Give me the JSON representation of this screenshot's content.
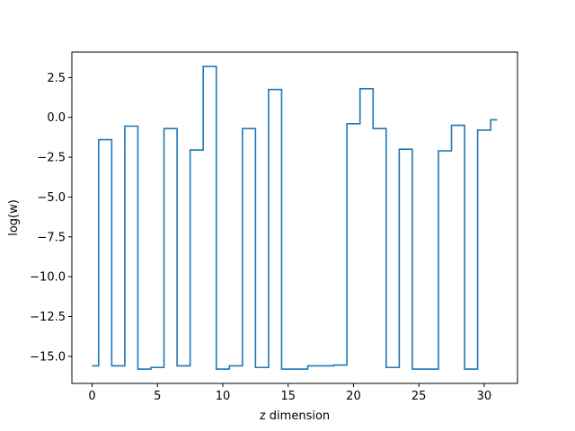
{
  "chart_data": {
    "type": "line",
    "drawstyle": "steps-mid",
    "xlabel": "z dimension",
    "ylabel": "log(w)",
    "xlim": [
      -1.55,
      32.55
    ],
    "ylim": [
      -16.7,
      4.1
    ],
    "xticks": [
      0,
      5,
      10,
      15,
      20,
      25,
      30
    ],
    "xtick_labels": [
      "0",
      "5",
      "10",
      "15",
      "20",
      "25",
      "30"
    ],
    "yticks": [
      -15.0,
      -12.5,
      -10.0,
      -7.5,
      -5.0,
      -2.5,
      0.0,
      2.5
    ],
    "ytick_labels": [
      "−15.0",
      "−12.5",
      "−10.0",
      "−7.5",
      "−5.0",
      "−2.5",
      "0.0",
      "2.5"
    ],
    "grid": false,
    "color": "#1f77b4",
    "x": [
      0,
      1,
      2,
      3,
      4,
      5,
      6,
      7,
      8,
      9,
      10,
      11,
      12,
      13,
      14,
      15,
      16,
      17,
      18,
      19,
      20,
      21,
      22,
      23,
      24,
      25,
      26,
      27,
      28,
      29,
      30,
      31
    ],
    "y": [
      -15.6,
      -1.4,
      -15.6,
      -0.55,
      -15.8,
      -15.7,
      -0.7,
      -15.6,
      -2.05,
      3.2,
      -15.8,
      -15.6,
      -0.7,
      -15.7,
      1.75,
      -15.8,
      -15.8,
      -15.6,
      -15.6,
      -15.55,
      -0.4,
      1.8,
      -0.7,
      -15.7,
      -2.0,
      -15.8,
      -15.8,
      -2.1,
      -0.5,
      -15.8,
      -0.8,
      -0.15
    ]
  }
}
